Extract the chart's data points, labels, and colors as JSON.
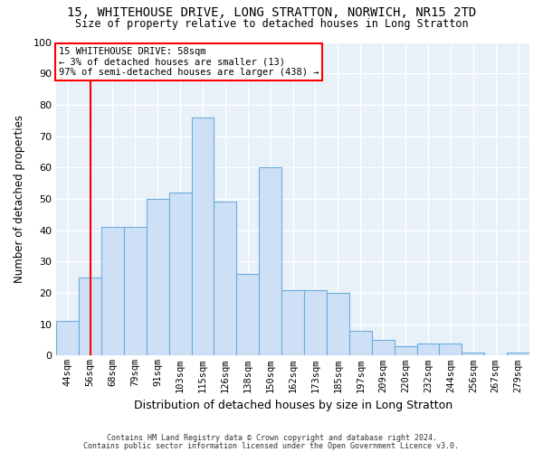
{
  "title_line1": "15, WHITEHOUSE DRIVE, LONG STRATTON, NORWICH, NR15 2TD",
  "title_line2": "Size of property relative to detached houses in Long Stratton",
  "xlabel": "Distribution of detached houses by size in Long Stratton",
  "ylabel": "Number of detached properties",
  "bar_color": "#cde0f5",
  "bar_edge_color": "#6aaee0",
  "categories": [
    "44sqm",
    "56sqm",
    "68sqm",
    "79sqm",
    "91sqm",
    "103sqm",
    "115sqm",
    "126sqm",
    "138sqm",
    "150sqm",
    "162sqm",
    "173sqm",
    "185sqm",
    "197sqm",
    "209sqm",
    "220sqm",
    "232sqm",
    "244sqm",
    "256sqm",
    "267sqm",
    "279sqm"
  ],
  "values": [
    11,
    25,
    41,
    41,
    50,
    52,
    76,
    49,
    26,
    60,
    21,
    21,
    20,
    8,
    5,
    3,
    4,
    4,
    1,
    0,
    1
  ],
  "ylim": [
    0,
    100
  ],
  "yticks": [
    0,
    10,
    20,
    30,
    40,
    50,
    60,
    70,
    80,
    90,
    100
  ],
  "property_label": "15 WHITEHOUSE DRIVE: 58sqm",
  "annotation_line1": "← 3% of detached houses are smaller (13)",
  "annotation_line2": "97% of semi-detached houses are larger (438) →",
  "vline_position": 1.5,
  "fig_bg": "#ffffff",
  "plot_bg": "#e8f0f8",
  "grid_color": "#ffffff",
  "footnote1": "Contains HM Land Registry data © Crown copyright and database right 2024.",
  "footnote2": "Contains public sector information licensed under the Open Government Licence v3.0."
}
